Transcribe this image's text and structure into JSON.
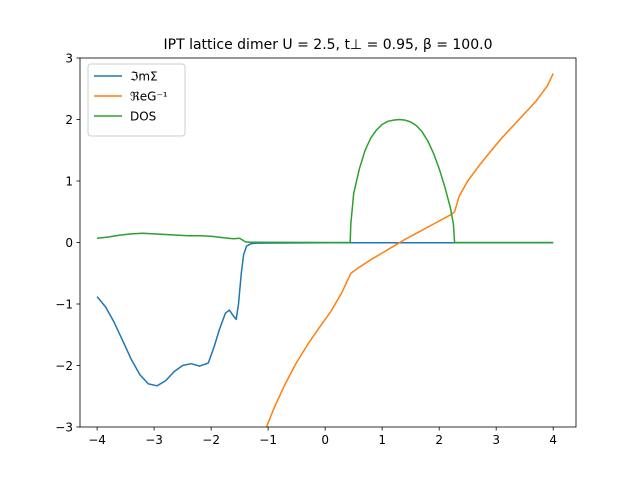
{
  "chart_data": {
    "type": "line",
    "title": "IPT lattice dimer U = 2.5, t⊥ = 0.95, β = 100.0",
    "xlabel": "",
    "ylabel": "",
    "xlim": [
      -4.3,
      4.4
    ],
    "ylim": [
      -3,
      3
    ],
    "xticks": [
      -4,
      -3,
      -2,
      -1,
      0,
      1,
      2,
      3,
      4
    ],
    "yticks": [
      -3,
      -2,
      -1,
      0,
      1,
      2,
      3
    ],
    "xtick_labels": [
      "−4",
      "−3",
      "−2",
      "−1",
      "0",
      "1",
      "2",
      "3",
      "4"
    ],
    "ytick_labels": [
      "−3",
      "−2",
      "−1",
      "0",
      "1",
      "2",
      "3"
    ],
    "grid": false,
    "legend_position": "upper left",
    "series": [
      {
        "name": "ℑmΣ",
        "color": "#1f77b4",
        "points": [
          [
            -4.0,
            -0.88
          ],
          [
            -3.85,
            -1.05
          ],
          [
            -3.7,
            -1.3
          ],
          [
            -3.55,
            -1.6
          ],
          [
            -3.4,
            -1.9
          ],
          [
            -3.25,
            -2.15
          ],
          [
            -3.1,
            -2.3
          ],
          [
            -2.95,
            -2.33
          ],
          [
            -2.8,
            -2.25
          ],
          [
            -2.65,
            -2.1
          ],
          [
            -2.5,
            -2.0
          ],
          [
            -2.35,
            -1.97
          ],
          [
            -2.2,
            -2.01
          ],
          [
            -2.05,
            -1.96
          ],
          [
            -1.95,
            -1.7
          ],
          [
            -1.85,
            -1.4
          ],
          [
            -1.75,
            -1.15
          ],
          [
            -1.68,
            -1.1
          ],
          [
            -1.62,
            -1.18
          ],
          [
            -1.56,
            -1.25
          ],
          [
            -1.52,
            -1.0
          ],
          [
            -1.47,
            -0.5
          ],
          [
            -1.43,
            -0.2
          ],
          [
            -1.38,
            -0.06
          ],
          [
            -1.3,
            -0.02
          ],
          [
            -1.2,
            -0.01
          ],
          [
            0.0,
            -0.005
          ],
          [
            2.0,
            -0.005
          ],
          [
            4.0,
            -0.005
          ]
        ]
      },
      {
        "name": "ℜeG⁻¹",
        "color": "#ff7f0e",
        "points": [
          [
            -1.05,
            -3.05
          ],
          [
            -0.9,
            -2.7
          ],
          [
            -0.7,
            -2.3
          ],
          [
            -0.5,
            -1.95
          ],
          [
            -0.3,
            -1.65
          ],
          [
            -0.1,
            -1.38
          ],
          [
            0.1,
            -1.12
          ],
          [
            0.3,
            -0.8
          ],
          [
            0.45,
            -0.5
          ],
          [
            0.6,
            -0.4
          ],
          [
            0.8,
            -0.28
          ],
          [
            1.0,
            -0.17
          ],
          [
            1.2,
            -0.06
          ],
          [
            1.4,
            0.05
          ],
          [
            1.6,
            0.15
          ],
          [
            1.8,
            0.25
          ],
          [
            2.0,
            0.35
          ],
          [
            2.2,
            0.45
          ],
          [
            2.27,
            0.5
          ],
          [
            2.35,
            0.75
          ],
          [
            2.5,
            1.0
          ],
          [
            2.7,
            1.25
          ],
          [
            2.9,
            1.48
          ],
          [
            3.1,
            1.7
          ],
          [
            3.3,
            1.9
          ],
          [
            3.5,
            2.1
          ],
          [
            3.7,
            2.3
          ],
          [
            3.9,
            2.55
          ],
          [
            4.0,
            2.75
          ]
        ]
      },
      {
        "name": "DOS",
        "color": "#2ca02c",
        "points": [
          [
            -4.0,
            0.07
          ],
          [
            -3.8,
            0.09
          ],
          [
            -3.6,
            0.12
          ],
          [
            -3.4,
            0.14
          ],
          [
            -3.2,
            0.15
          ],
          [
            -3.0,
            0.14
          ],
          [
            -2.8,
            0.13
          ],
          [
            -2.6,
            0.12
          ],
          [
            -2.4,
            0.11
          ],
          [
            -2.2,
            0.11
          ],
          [
            -2.0,
            0.1
          ],
          [
            -1.8,
            0.08
          ],
          [
            -1.7,
            0.07
          ],
          [
            -1.6,
            0.06
          ],
          [
            -1.5,
            0.07
          ],
          [
            -1.45,
            0.04
          ],
          [
            -1.4,
            0.01
          ],
          [
            -1.3,
            0.005
          ],
          [
            0.0,
            0.0
          ],
          [
            0.44,
            0.0
          ],
          [
            0.45,
            0.3
          ],
          [
            0.5,
            0.8
          ],
          [
            0.6,
            1.2
          ],
          [
            0.7,
            1.5
          ],
          [
            0.8,
            1.7
          ],
          [
            0.9,
            1.83
          ],
          [
            1.0,
            1.92
          ],
          [
            1.1,
            1.97
          ],
          [
            1.2,
            1.99
          ],
          [
            1.3,
            2.0
          ],
          [
            1.4,
            1.99
          ],
          [
            1.5,
            1.96
          ],
          [
            1.6,
            1.9
          ],
          [
            1.7,
            1.8
          ],
          [
            1.8,
            1.65
          ],
          [
            1.9,
            1.45
          ],
          [
            2.0,
            1.2
          ],
          [
            2.1,
            0.9
          ],
          [
            2.2,
            0.55
          ],
          [
            2.25,
            0.3
          ],
          [
            2.27,
            0.0
          ],
          [
            2.5,
            0.0
          ],
          [
            3.0,
            0.0
          ],
          [
            4.0,
            0.0
          ]
        ]
      }
    ]
  }
}
